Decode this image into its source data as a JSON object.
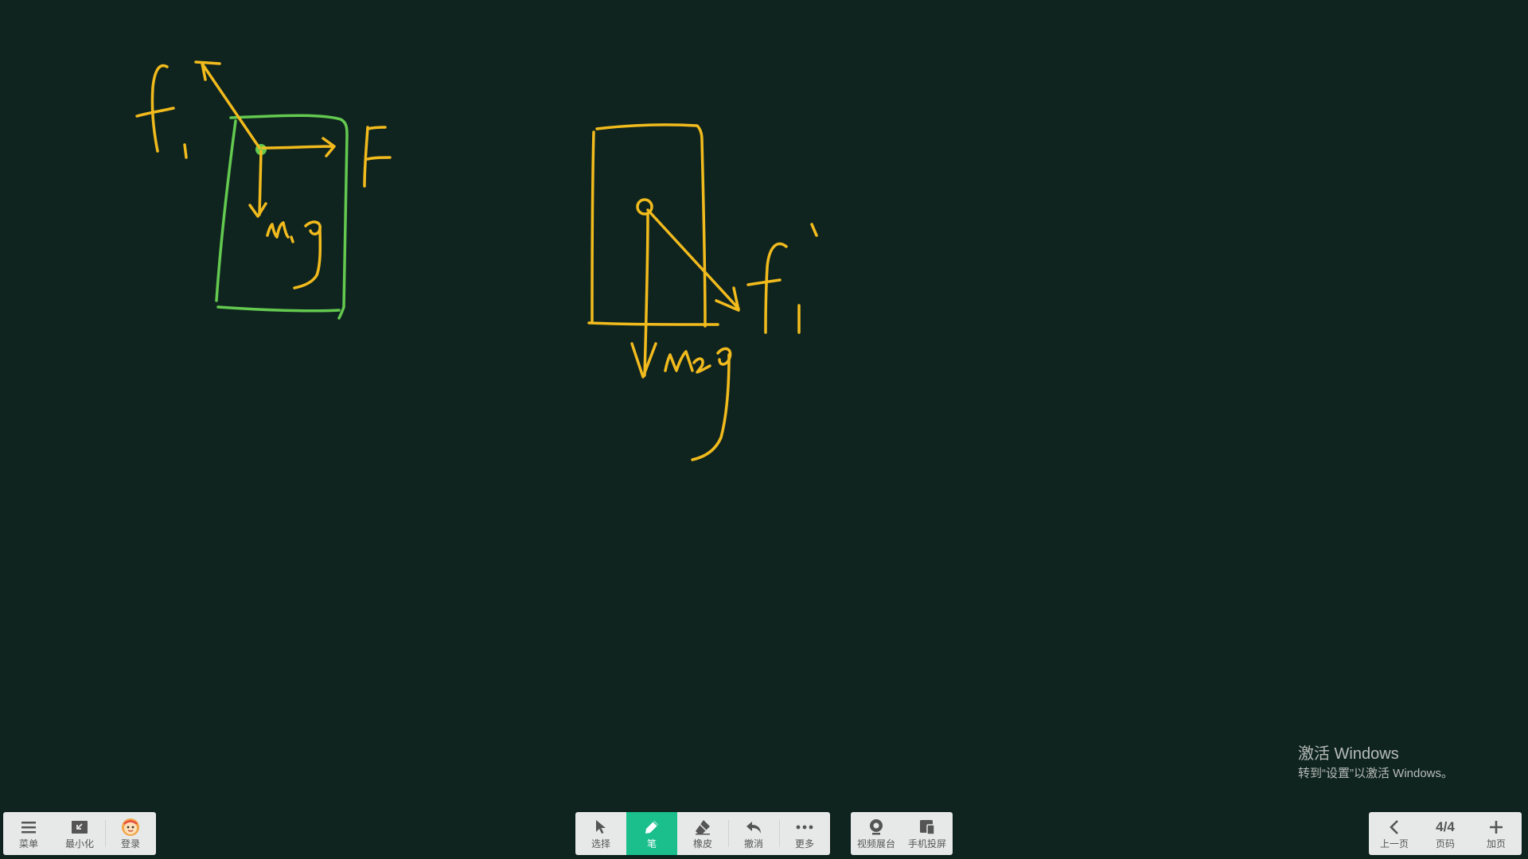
{
  "left_toolbar": {
    "menu_label": "菜单",
    "minimize_label": "最小化",
    "login_label": "登录"
  },
  "center_toolbar": {
    "select_label": "选择",
    "pen_label": "笔",
    "eraser_label": "橡皮",
    "undo_label": "撤消",
    "more_label": "更多"
  },
  "media_toolbar": {
    "video_booth_label": "视频展台",
    "phone_cast_label": "手机投屏"
  },
  "page_toolbar": {
    "prev_label": "上一页",
    "page_indicator": "4/4",
    "page_label": "页码",
    "add_label": "加页"
  },
  "watermark": {
    "title": "激活 Windows",
    "subtitle": "转到“设置”以激活 Windows。"
  },
  "colors": {
    "board_background": "#0f241f",
    "ink_yellow": "#f2bb1d",
    "ink_green": "#63c94f",
    "toolbar_background": "#e7e9e8",
    "active_tool": "#1bbf8c"
  },
  "active_tool": "pen"
}
